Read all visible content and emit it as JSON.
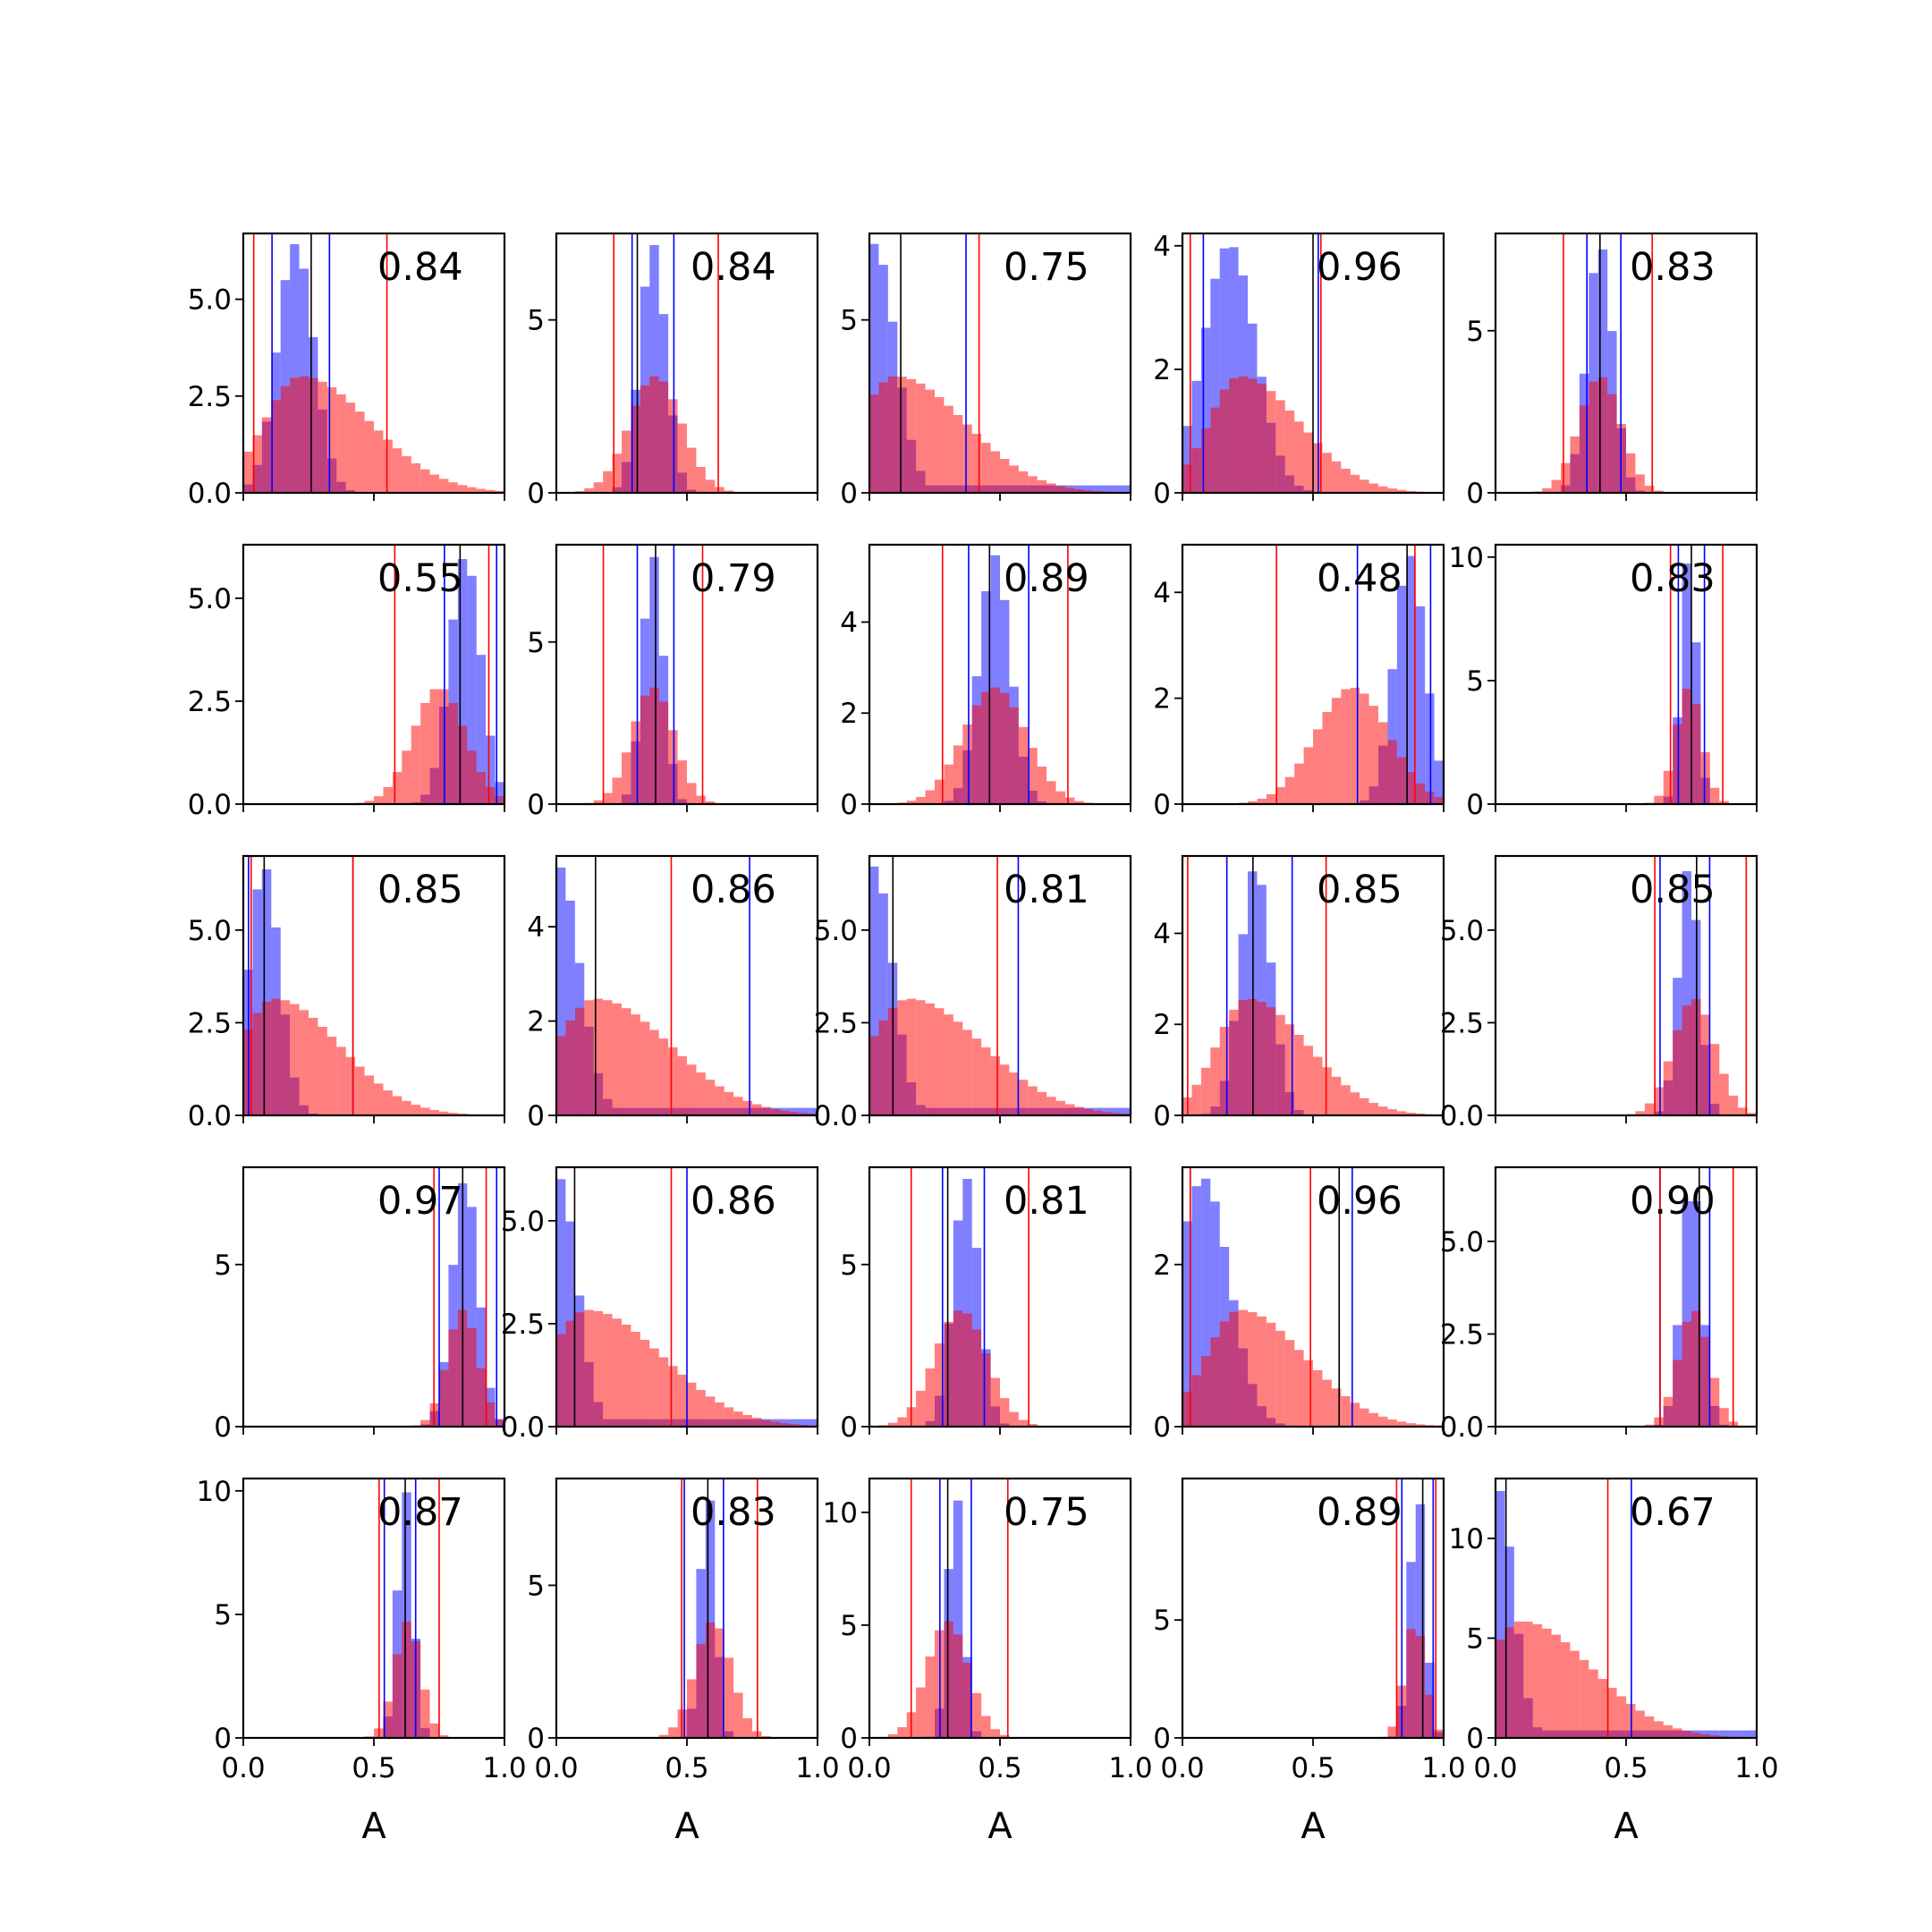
{
  "figure": {
    "xlabel": "A",
    "colors": {
      "blue": "#0000ff",
      "red": "#ff0000",
      "median": "#000000"
    }
  },
  "chart_data": [
    {
      "type": "bar",
      "label": "0.84",
      "ymax": 6.7,
      "yticks": [
        0,
        2.5,
        5
      ],
      "ytick_labels": [
        "0.0",
        "2.5",
        "5.0"
      ],
      "blue_peak": 0.2,
      "blue_width": 0.07,
      "red_peak": 0.22,
      "red_width": 0.14,
      "red_skew": true,
      "blue_lines": [
        0.11,
        0.33
      ],
      "red_lines": [
        0.04,
        0.55
      ],
      "median": 0.26
    },
    {
      "type": "bar",
      "label": "0.84",
      "ymax": 7.5,
      "yticks": [
        0,
        5
      ],
      "ytick_labels": [
        "0",
        "5"
      ],
      "blue_peak": 0.37,
      "blue_width": 0.05,
      "red_peak": 0.38,
      "red_width": 0.1,
      "red_skew": false,
      "blue_lines": [
        0.29,
        0.45
      ],
      "red_lines": [
        0.22,
        0.62
      ],
      "median": 0.31
    },
    {
      "type": "bar",
      "label": "0.75",
      "ymax": 7.5,
      "yticks": [
        0,
        5
      ],
      "ytick_labels": [
        "0",
        "5"
      ],
      "blue_peak": 0.02,
      "blue_width": 0.08,
      "red_peak": 0.1,
      "red_width": 0.14,
      "red_skew": true,
      "blue_lines": [
        0.37
      ],
      "red_lines": [
        0.42
      ],
      "median": 0.12
    },
    {
      "type": "bar",
      "label": "0.96",
      "ymax": 4.2,
      "yticks": [
        0,
        2,
        4
      ],
      "ytick_labels": [
        "0",
        "2",
        "4"
      ],
      "blue_peak": 0.18,
      "blue_width": 0.1,
      "red_peak": 0.22,
      "red_width": 0.12,
      "red_skew": true,
      "blue_lines": [
        0.08,
        0.52
      ],
      "red_lines": [
        0.03,
        0.53
      ],
      "median": 0.5
    },
    {
      "type": "bar",
      "label": "0.83",
      "ymax": 8.0,
      "yticks": [
        0,
        5
      ],
      "ytick_labels": [
        "0",
        "5"
      ],
      "blue_peak": 0.4,
      "blue_width": 0.05,
      "red_peak": 0.4,
      "red_width": 0.08,
      "red_skew": false,
      "blue_lines": [
        0.35,
        0.48
      ],
      "red_lines": [
        0.26,
        0.6
      ],
      "median": 0.4
    },
    {
      "type": "bar",
      "label": "0.55",
      "ymax": 6.3,
      "yticks": [
        0,
        2.5,
        5
      ],
      "ytick_labels": [
        "0.0",
        "2.5",
        "5.0"
      ],
      "blue_peak": 0.85,
      "blue_width": 0.06,
      "red_peak": 0.75,
      "red_width": 0.1,
      "red_skew": false,
      "blue_lines": [
        0.77,
        0.97
      ],
      "red_lines": [
        0.58,
        0.94
      ],
      "median": 0.83
    },
    {
      "type": "bar",
      "label": "0.79",
      "ymax": 8.0,
      "yticks": [
        0,
        5
      ],
      "ytick_labels": [
        "0",
        "5"
      ],
      "blue_peak": 0.37,
      "blue_width": 0.04,
      "red_peak": 0.37,
      "red_width": 0.08,
      "red_skew": false,
      "blue_lines": [
        0.31,
        0.45
      ],
      "red_lines": [
        0.18,
        0.56
      ],
      "median": 0.38
    },
    {
      "type": "bar",
      "label": "0.89",
      "ymax": 5.7,
      "yticks": [
        0,
        2,
        4
      ],
      "ytick_labels": [
        "0",
        "2",
        "4"
      ],
      "blue_peak": 0.48,
      "blue_width": 0.06,
      "red_peak": 0.48,
      "red_width": 0.12,
      "red_skew": false,
      "blue_lines": [
        0.38,
        0.61
      ],
      "red_lines": [
        0.28,
        0.76
      ],
      "median": 0.46
    },
    {
      "type": "bar",
      "label": "0.48",
      "ymax": 4.9,
      "yticks": [
        0,
        2,
        4
      ],
      "ytick_labels": [
        "0",
        "2",
        "4"
      ],
      "blue_peak": 0.87,
      "blue_width": 0.06,
      "red_peak": 0.65,
      "red_width": 0.14,
      "red_skew": false,
      "blue_lines": [
        0.67,
        0.95
      ],
      "red_lines": [
        0.36,
        0.89
      ],
      "median": 0.86
    },
    {
      "type": "bar",
      "label": "0.83",
      "ymax": 10.5,
      "yticks": [
        0,
        5,
        10
      ],
      "ytick_labels": [
        "0",
        "5",
        "10"
      ],
      "blue_peak": 0.74,
      "blue_width": 0.03,
      "red_peak": 0.74,
      "red_width": 0.05,
      "red_skew": false,
      "blue_lines": [
        0.7,
        0.8
      ],
      "red_lines": [
        0.67,
        0.87
      ],
      "median": 0.75
    },
    {
      "type": "bar",
      "label": "0.85",
      "ymax": 7.0,
      "yticks": [
        0,
        2.5,
        5
      ],
      "ytick_labels": [
        "0.0",
        "2.5",
        "5.0"
      ],
      "blue_peak": 0.08,
      "blue_width": 0.06,
      "red_peak": 0.12,
      "red_width": 0.13,
      "red_skew": true,
      "blue_lines": [
        0.02,
        0.42
      ],
      "red_lines": [
        0.03,
        0.42
      ],
      "median": 0.08
    },
    {
      "type": "bar",
      "label": "0.86",
      "ymax": 5.5,
      "yticks": [
        0,
        2,
        4
      ],
      "ytick_labels": [
        "0",
        "2",
        "4"
      ],
      "blue_peak": 0.01,
      "blue_width": 0.08,
      "red_peak": 0.15,
      "red_width": 0.15,
      "red_skew": true,
      "blue_lines": [
        0.74
      ],
      "red_lines": [
        0.44
      ],
      "median": 0.15
    },
    {
      "type": "bar",
      "label": "0.81",
      "ymax": 7.0,
      "yticks": [
        0,
        2.5,
        5
      ],
      "ytick_labels": [
        "0.0",
        "2.5",
        "5.0"
      ],
      "blue_peak": 0.02,
      "blue_width": 0.07,
      "red_peak": 0.15,
      "red_width": 0.15,
      "red_skew": true,
      "blue_lines": [
        0.57
      ],
      "red_lines": [
        0.49
      ],
      "median": 0.09
    },
    {
      "type": "bar",
      "label": "0.85",
      "ymax": 5.7,
      "yticks": [
        0,
        2,
        4
      ],
      "ytick_labels": [
        "0",
        "2",
        "4"
      ],
      "blue_peak": 0.28,
      "blue_width": 0.06,
      "red_peak": 0.25,
      "red_width": 0.12,
      "red_skew": true,
      "blue_lines": [
        0.17,
        0.42
      ],
      "red_lines": [
        0.02,
        0.55
      ],
      "median": 0.27
    },
    {
      "type": "bar",
      "label": "0.85",
      "ymax": 7.0,
      "yticks": [
        0,
        2.5,
        5
      ],
      "ytick_labels": [
        "0.0",
        "2.5",
        "5.0"
      ],
      "blue_peak": 0.74,
      "blue_width": 0.04,
      "red_peak": 0.76,
      "red_width": 0.08,
      "red_skew": false,
      "blue_lines": [
        0.63,
        0.82
      ],
      "red_lines": [
        0.61,
        0.96
      ],
      "median": 0.77
    },
    {
      "type": "bar",
      "label": "0.97",
      "ymax": 8.0,
      "yticks": [
        0,
        5
      ],
      "ytick_labels": [
        "0",
        "5"
      ],
      "blue_peak": 0.85,
      "blue_width": 0.05,
      "red_peak": 0.84,
      "red_width": 0.06,
      "red_skew": false,
      "blue_lines": [
        0.75,
        0.97
      ],
      "red_lines": [
        0.73,
        0.93
      ],
      "median": 0.84
    },
    {
      "type": "bar",
      "label": "0.86",
      "ymax": 6.3,
      "yticks": [
        0,
        2.5,
        5
      ],
      "ytick_labels": [
        "0.0",
        "2.5",
        "5.0"
      ],
      "blue_peak": 0.01,
      "blue_width": 0.07,
      "red_peak": 0.12,
      "red_width": 0.15,
      "red_skew": true,
      "blue_lines": [
        0.5
      ],
      "red_lines": [
        0.44
      ],
      "median": 0.07
    },
    {
      "type": "bar",
      "label": "0.81",
      "ymax": 8.0,
      "yticks": [
        0,
        5
      ],
      "ytick_labels": [
        "0",
        "5"
      ],
      "blue_peak": 0.37,
      "blue_width": 0.05,
      "red_peak": 0.35,
      "red_width": 0.1,
      "red_skew": false,
      "blue_lines": [
        0.28,
        0.44
      ],
      "red_lines": [
        0.16,
        0.61
      ],
      "median": 0.3
    },
    {
      "type": "bar",
      "label": "0.96",
      "ymax": 3.2,
      "yticks": [
        0,
        2
      ],
      "ytick_labels": [
        "0",
        "2"
      ],
      "blue_peak": 0.08,
      "blue_width": 0.1,
      "red_peak": 0.22,
      "red_width": 0.13,
      "red_skew": true,
      "blue_lines": [
        0.03,
        0.65
      ],
      "red_lines": [
        0.03,
        0.49
      ],
      "median": 0.6
    },
    {
      "type": "bar",
      "label": "0.90",
      "ymax": 7.0,
      "yticks": [
        0,
        2.5,
        5
      ],
      "ytick_labels": [
        "0.0",
        "2.5",
        "5.0"
      ],
      "blue_peak": 0.75,
      "blue_width": 0.04,
      "red_peak": 0.76,
      "red_width": 0.06,
      "red_skew": false,
      "blue_lines": [
        0.63,
        0.82
      ],
      "red_lines": [
        0.63,
        0.91
      ],
      "median": 0.78
    },
    {
      "type": "bar",
      "label": "0.87",
      "ymax": 10.5,
      "yticks": [
        0,
        5,
        10
      ],
      "ytick_labels": [
        "0",
        "5",
        "10"
      ],
      "blue_peak": 0.62,
      "blue_width": 0.03,
      "red_peak": 0.63,
      "red_width": 0.05,
      "red_skew": false,
      "blue_lines": [
        0.54,
        0.66
      ],
      "red_lines": [
        0.52,
        0.75
      ],
      "median": 0.62
    },
    {
      "type": "bar",
      "label": "0.83",
      "ymax": 8.5,
      "yticks": [
        0,
        5
      ],
      "ytick_labels": [
        "0",
        "5"
      ],
      "blue_peak": 0.58,
      "blue_width": 0.03,
      "red_peak": 0.6,
      "red_width": 0.07,
      "red_skew": false,
      "blue_lines": [
        0.49,
        0.64
      ],
      "red_lines": [
        0.48,
        0.77
      ],
      "median": 0.58
    },
    {
      "type": "bar",
      "label": "0.75",
      "ymax": 11.5,
      "yticks": [
        0,
        5,
        10
      ],
      "ytick_labels": [
        "0",
        "5",
        "10"
      ],
      "blue_peak": 0.33,
      "blue_width": 0.03,
      "red_peak": 0.3,
      "red_width": 0.08,
      "red_skew": false,
      "blue_lines": [
        0.27,
        0.39
      ],
      "red_lines": [
        0.16,
        0.53
      ],
      "median": 0.3
    },
    {
      "type": "bar",
      "label": "0.89",
      "ymax": 11.0,
      "yticks": [
        0,
        5
      ],
      "ytick_labels": [
        "0",
        "5"
      ],
      "blue_peak": 0.9,
      "blue_width": 0.03,
      "red_peak": 0.89,
      "red_width": 0.04,
      "red_skew": false,
      "blue_lines": [
        0.84,
        0.96
      ],
      "red_lines": [
        0.82,
        0.97
      ],
      "median": 0.92
    },
    {
      "type": "bar",
      "label": "0.67",
      "ymax": 13.0,
      "yticks": [
        0,
        5,
        10
      ],
      "ytick_labels": [
        "0",
        "5",
        "10"
      ],
      "blue_peak": 0.01,
      "blue_width": 0.06,
      "red_peak": 0.1,
      "red_width": 0.14,
      "red_skew": true,
      "blue_lines": [
        0.52
      ],
      "red_lines": [
        0.43
      ],
      "median": 0.04
    }
  ]
}
